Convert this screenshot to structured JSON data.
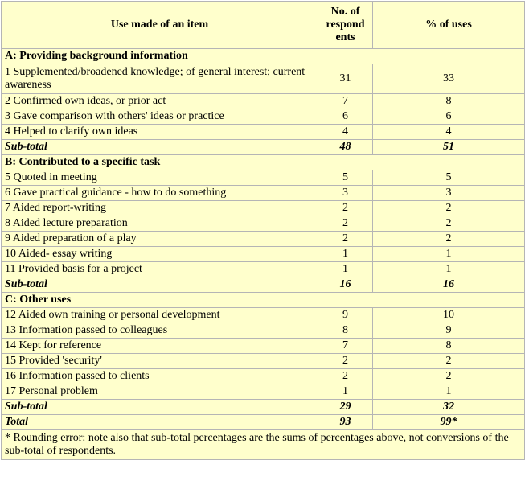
{
  "headers": {
    "use": "Use made of an item",
    "respondents": "No. of respond ents",
    "percent": "% of uses"
  },
  "section_a": {
    "title": "A: Providing background information",
    "rows": [
      {
        "label": "1 Supplemented/broadened knowledge; of general interest; current awareness",
        "n": "31",
        "pct": "33"
      },
      {
        "label": "2 Confirmed own ideas, or prior act",
        "n": "7",
        "pct": "8"
      },
      {
        "label": "3 Gave comparison with others' ideas or practice",
        "n": "6",
        "pct": "6"
      },
      {
        "label": "4 Helped to clarify own ideas",
        "n": "4",
        "pct": "4"
      }
    ],
    "subtotal": {
      "label": "Sub-total",
      "n": "48",
      "pct": "51"
    }
  },
  "section_b": {
    "title": "B: Contributed to a specific task",
    "rows": [
      {
        "label": "5 Quoted in meeting",
        "n": "5",
        "pct": "5"
      },
      {
        "label": "6 Gave practical guidance - how to do something",
        "n": "3",
        "pct": "3"
      },
      {
        "label": "7 Aided report-writing",
        "n": "2",
        "pct": "2"
      },
      {
        "label": "8 Aided lecture preparation",
        "n": "2",
        "pct": "2"
      },
      {
        "label": "9 Aided preparation of a play",
        "n": "2",
        "pct": "2"
      },
      {
        "label": "10 Aided- essay writing",
        "n": "1",
        "pct": "1"
      },
      {
        "label": "11 Provided basis for a project",
        "n": "1",
        "pct": "1"
      }
    ],
    "subtotal": {
      "label": "Sub-total",
      "n": "16",
      "pct": "16"
    }
  },
  "section_c": {
    "title": "C: Other uses",
    "rows": [
      {
        "label": "12 Aided own training or personal development",
        "n": "9",
        "pct": "10"
      },
      {
        "label": "13 Information passed to colleagues",
        "n": "8",
        "pct": "9"
      },
      {
        "label": "14 Kept for reference",
        "n": "7",
        "pct": "8"
      },
      {
        "label": "15 Provided 'security'",
        "n": "2",
        "pct": "2"
      },
      {
        "label": "16 Information passed to clients",
        "n": "2",
        "pct": "2"
      },
      {
        "label": "17 Personal problem",
        "n": "1",
        "pct": "1"
      }
    ],
    "subtotal": {
      "label": "Sub-total",
      "n": "29",
      "pct": "32"
    }
  },
  "total": {
    "label": "Total",
    "n": "93",
    "pct": "99*"
  },
  "footnote": "* Rounding error: note also that sub-total percentages are the sums of percentages above, not conversions of the sub-total of respondents."
}
